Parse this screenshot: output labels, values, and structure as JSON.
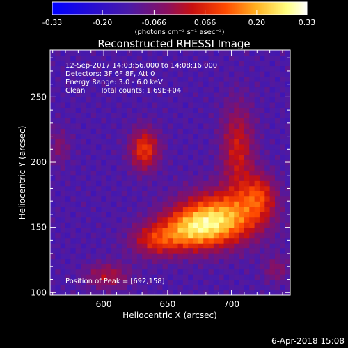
{
  "colorbar": {
    "tick_labels": [
      "-0.33",
      "-0.20",
      "-0.066",
      "0.066",
      "0.20",
      "0.33"
    ],
    "tick_values": [
      -0.33,
      -0.2,
      -0.066,
      0.066,
      0.2,
      0.33
    ],
    "range": [
      -0.33,
      0.33
    ],
    "unit_label": "(photons cm⁻² s⁻¹ asec⁻²)",
    "colors": [
      "#0000ff",
      "#4a1aa8",
      "#8a1060",
      "#c81010",
      "#ff4a00",
      "#ffb020",
      "#ffff80",
      "#ffffff"
    ]
  },
  "title": "Reconstructed RHESSI Image",
  "info": {
    "time_range": "12-Sep-2017 14:03:56.000 to 14:08:16.000",
    "detectors": "Detectors: 3F 6F 8F, Att 0",
    "energy": "Energy Range: 3.0 - 6.0 keV",
    "method": "Clean",
    "counts": "Total counts: 1.69E+04",
    "peak": "Position of Peak = [692,158]"
  },
  "footer_date": "6-Apr-2018 15:08",
  "chart_data": {
    "type": "heatmap",
    "xlabel": "Heliocentric X (arcsec)",
    "ylabel": "Heliocentric Y (arcsec)",
    "xlim": [
      558,
      746
    ],
    "ylim": [
      98,
      286
    ],
    "x_ticks": [
      600,
      650,
      700
    ],
    "y_ticks": [
      100,
      150,
      200,
      250
    ],
    "value_range": [
      -0.33,
      0.33
    ],
    "peak": [
      692,
      158
    ],
    "sources": [
      {
        "x": 692,
        "y": 158,
        "sx": 22,
        "sy": 14,
        "amp": 0.31
      },
      {
        "x": 668,
        "y": 148,
        "sx": 18,
        "sy": 11,
        "amp": 0.24
      },
      {
        "x": 640,
        "y": 140,
        "sx": 14,
        "sy": 9,
        "amp": 0.16
      },
      {
        "x": 632,
        "y": 210,
        "sx": 8,
        "sy": 11,
        "amp": 0.22
      },
      {
        "x": 705,
        "y": 210,
        "sx": 9,
        "sy": 24,
        "amp": 0.17
      },
      {
        "x": 722,
        "y": 175,
        "sx": 9,
        "sy": 12,
        "amp": 0.18
      },
      {
        "x": 603,
        "y": 113,
        "sx": 12,
        "sy": 7,
        "amp": 0.13
      },
      {
        "x": 735,
        "y": 118,
        "sx": 7,
        "sy": 7,
        "amp": 0.09
      },
      {
        "x": 565,
        "y": 212,
        "sx": 6,
        "sy": 10,
        "amp": 0.08
      }
    ],
    "background": -0.13
  }
}
